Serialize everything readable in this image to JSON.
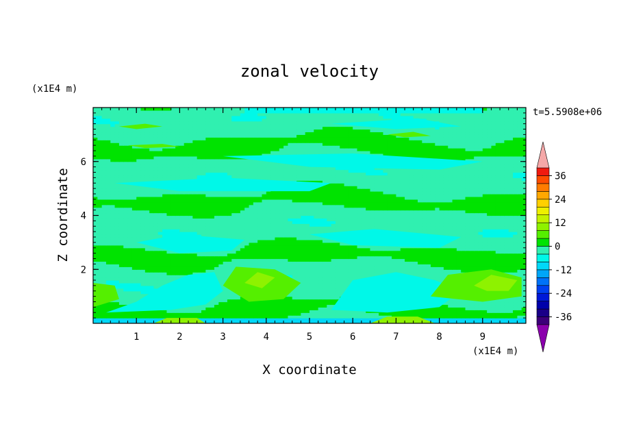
{
  "chart_data": {
    "type": "heatmap",
    "title": "zonal velocity",
    "xlabel": "X coordinate",
    "ylabel": "Z coordinate",
    "x_unit": "(x1E4 m)",
    "y_unit": "(x1E4 m)",
    "time_label": "t=5.5908e+06",
    "xlim": [
      0,
      10
    ],
    "ylim": [
      0,
      8
    ],
    "x_ticks": [
      1,
      2,
      3,
      4,
      5,
      6,
      7,
      8,
      9
    ],
    "y_ticks": [
      2,
      4,
      6
    ],
    "colorbar": {
      "levels": [
        -40,
        -36,
        -32,
        -28,
        -24,
        -20,
        -16,
        -12,
        -8,
        -4,
        0,
        4,
        8,
        12,
        16,
        20,
        24,
        28,
        32,
        36,
        40
      ],
      "tick_labels": [
        36,
        24,
        12,
        0,
        -12,
        -24,
        -36
      ],
      "colors": [
        "#3d0079",
        "#1a0088",
        "#0000aa",
        "#0018d8",
        "#0040f0",
        "#0072f8",
        "#00a6f8",
        "#00d8f8",
        "#00f8e8",
        "#30f0b0",
        "#00e300",
        "#55ef00",
        "#8ef200",
        "#c4f200",
        "#eef000",
        "#ffd000",
        "#ffa800",
        "#ff7c00",
        "#ff4c00",
        "#f01a10"
      ],
      "under_color": "#8b00ad",
      "over_color": "#f5a8a8"
    },
    "regions": [
      {
        "level": -8,
        "points": [
          [
            0.3,
            0.4
          ],
          [
            1.0,
            0.8
          ],
          [
            1.6,
            1.4
          ],
          [
            2.2,
            1.8
          ],
          [
            2.8,
            1.9
          ],
          [
            3.0,
            1.2
          ],
          [
            2.6,
            0.7
          ],
          [
            1.8,
            0.5
          ]
        ]
      },
      {
        "level": -8,
        "points": [
          [
            5.5,
            0.5
          ],
          [
            6.0,
            1.6
          ],
          [
            7.0,
            1.9
          ],
          [
            7.9,
            1.6
          ],
          [
            8.5,
            1.2
          ],
          [
            8.0,
            0.6
          ],
          [
            6.8,
            0.4
          ]
        ]
      },
      {
        "level": 4,
        "points": [
          [
            3.0,
            1.4
          ],
          [
            3.3,
            2.1
          ],
          [
            4.2,
            2.0
          ],
          [
            4.8,
            1.5
          ],
          [
            4.4,
            0.9
          ],
          [
            3.6,
            0.8
          ]
        ]
      },
      {
        "level": 4,
        "points": [
          [
            0.0,
            0.6
          ],
          [
            0.0,
            1.5
          ],
          [
            0.5,
            1.4
          ],
          [
            0.6,
            0.9
          ]
        ]
      },
      {
        "level": 4,
        "points": [
          [
            7.8,
            1.0
          ],
          [
            8.2,
            1.8
          ],
          [
            9.2,
            2.0
          ],
          [
            9.9,
            1.7
          ],
          [
            9.9,
            1.0
          ],
          [
            9.0,
            0.8
          ]
        ]
      },
      {
        "level": 8,
        "points": [
          [
            8.8,
            1.4
          ],
          [
            9.2,
            1.8
          ],
          [
            9.8,
            1.6
          ],
          [
            9.6,
            1.2
          ],
          [
            9.1,
            1.2
          ]
        ]
      },
      {
        "level": 8,
        "points": [
          [
            3.5,
            1.5
          ],
          [
            3.8,
            1.9
          ],
          [
            4.2,
            1.7
          ],
          [
            3.9,
            1.3
          ]
        ]
      },
      {
        "level": 8,
        "points": [
          [
            1.4,
            0.0
          ],
          [
            1.7,
            0.2
          ],
          [
            2.4,
            0.2
          ],
          [
            2.6,
            0.0
          ]
        ]
      },
      {
        "level": 8,
        "points": [
          [
            6.4,
            0.0
          ],
          [
            6.8,
            0.25
          ],
          [
            7.5,
            0.25
          ],
          [
            7.9,
            0.0
          ]
        ]
      },
      {
        "level": -8,
        "points": [
          [
            1.0,
            3.0
          ],
          [
            2.0,
            3.3
          ],
          [
            3.5,
            3.1
          ],
          [
            3.2,
            2.7
          ],
          [
            2.0,
            2.6
          ]
        ]
      },
      {
        "level": -8,
        "points": [
          [
            5.0,
            3.3
          ],
          [
            6.5,
            3.5
          ],
          [
            8.5,
            3.2
          ],
          [
            8.0,
            2.8
          ],
          [
            6.0,
            2.9
          ]
        ]
      },
      {
        "level": -8,
        "points": [
          [
            0.5,
            5.2
          ],
          [
            3.0,
            5.4
          ],
          [
            5.5,
            5.2
          ],
          [
            5.0,
            4.9
          ],
          [
            2.0,
            4.9
          ]
        ]
      },
      {
        "level": -8,
        "points": [
          [
            3.0,
            6.2
          ],
          [
            6.0,
            6.3
          ],
          [
            9.0,
            6.0
          ],
          [
            8.0,
            5.7
          ],
          [
            5.0,
            5.8
          ]
        ]
      },
      {
        "level": -8,
        "points": [
          [
            5.5,
            7.4
          ],
          [
            7.5,
            7.6
          ],
          [
            8.5,
            7.3
          ],
          [
            7.0,
            7.2
          ]
        ]
      },
      {
        "level": 4,
        "points": [
          [
            0.6,
            7.3
          ],
          [
            1.2,
            7.4
          ],
          [
            1.6,
            7.3
          ],
          [
            1.0,
            7.2
          ]
        ]
      },
      {
        "level": 4,
        "points": [
          [
            6.8,
            7.0
          ],
          [
            7.4,
            7.1
          ],
          [
            7.8,
            6.95
          ],
          [
            7.2,
            6.9
          ]
        ]
      },
      {
        "level": 4,
        "points": [
          [
            0.8,
            6.6
          ],
          [
            1.6,
            6.65
          ],
          [
            2.0,
            6.55
          ],
          [
            1.2,
            6.5
          ]
        ]
      }
    ]
  }
}
